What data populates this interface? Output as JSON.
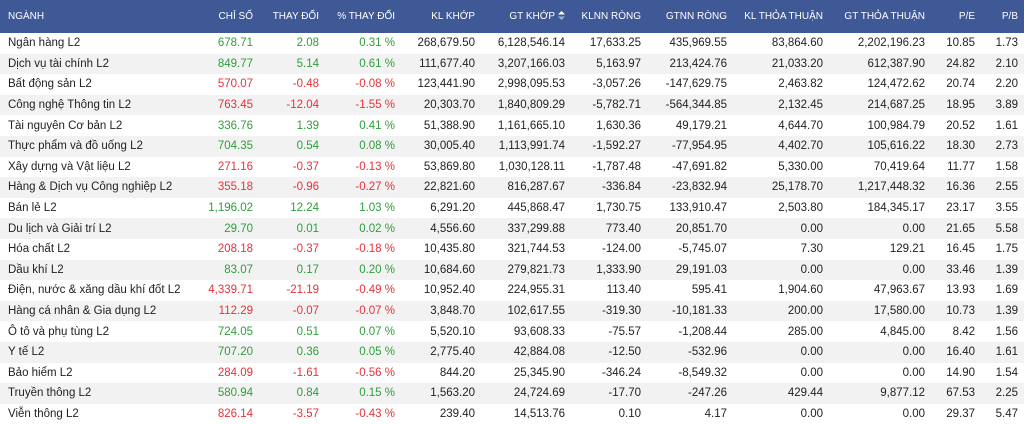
{
  "headers": [
    "NGÀNH",
    "CHỈ SỐ",
    "THAY ĐỔI",
    "% THAY ĐỔI",
    "KL KHỚP",
    "GT KHỚP",
    "KLNN RÒNG",
    "GTNN RÒNG",
    "KL THỎA THUẬN",
    "GT THỎA THUẬN",
    "P/E",
    "P/B"
  ],
  "sort_icon": "sort-up-down-icon",
  "colors": {
    "header_bg": "#3f5896",
    "up": "#2e9e3a",
    "down": "#e5333a"
  },
  "rows": [
    {
      "name": "Ngân hàng L2",
      "index": "678.71",
      "change": "2.08",
      "pct": "0.31 %",
      "kl_khop": "268,679.50",
      "gt_khop": "6,128,546.14",
      "klnn": "17,633.25",
      "gtnn": "435,969.55",
      "kl_tt": "83,864.60",
      "gt_tt": "2,202,196.23",
      "pe": "10.85",
      "pb": "1.73",
      "dir": "up"
    },
    {
      "name": "Dịch vụ tài chính L2",
      "index": "849.77",
      "change": "5.14",
      "pct": "0.61 %",
      "kl_khop": "111,677.40",
      "gt_khop": "3,207,166.03",
      "klnn": "5,163.97",
      "gtnn": "213,424.76",
      "kl_tt": "21,033.20",
      "gt_tt": "612,387.90",
      "pe": "24.82",
      "pb": "2.10",
      "dir": "up"
    },
    {
      "name": "Bất động sản L2",
      "index": "570.07",
      "change": "-0.48",
      "pct": "-0.08 %",
      "kl_khop": "123,441.90",
      "gt_khop": "2,998,095.53",
      "klnn": "-3,057.26",
      "gtnn": "-147,629.75",
      "kl_tt": "2,463.82",
      "gt_tt": "124,472.62",
      "pe": "20.74",
      "pb": "2.20",
      "dir": "down"
    },
    {
      "name": "Công nghệ Thông tin L2",
      "index": "763.45",
      "change": "-12.04",
      "pct": "-1.55 %",
      "kl_khop": "20,303.70",
      "gt_khop": "1,840,809.29",
      "klnn": "-5,782.71",
      "gtnn": "-564,344.85",
      "kl_tt": "2,132.45",
      "gt_tt": "214,687.25",
      "pe": "18.95",
      "pb": "3.89",
      "dir": "down"
    },
    {
      "name": "Tài nguyên Cơ bản L2",
      "index": "336.76",
      "change": "1.39",
      "pct": "0.41 %",
      "kl_khop": "51,388.90",
      "gt_khop": "1,161,665.10",
      "klnn": "1,630.36",
      "gtnn": "49,179.21",
      "kl_tt": "4,644.70",
      "gt_tt": "100,984.79",
      "pe": "20.52",
      "pb": "1.61",
      "dir": "up"
    },
    {
      "name": "Thực phẩm và đồ uống L2",
      "index": "704.35",
      "change": "0.54",
      "pct": "0.08 %",
      "kl_khop": "30,005.40",
      "gt_khop": "1,113,991.74",
      "klnn": "-1,592.27",
      "gtnn": "-77,954.95",
      "kl_tt": "4,402.70",
      "gt_tt": "105,616.22",
      "pe": "18.30",
      "pb": "2.73",
      "dir": "up"
    },
    {
      "name": "Xây dựng và Vật liệu L2",
      "index": "271.16",
      "change": "-0.37",
      "pct": "-0.13 %",
      "kl_khop": "53,869.80",
      "gt_khop": "1,030,128.11",
      "klnn": "-1,787.48",
      "gtnn": "-47,691.82",
      "kl_tt": "5,330.00",
      "gt_tt": "70,419.64",
      "pe": "11.77",
      "pb": "1.58",
      "dir": "down"
    },
    {
      "name": "Hàng & Dịch vụ Công nghiệp L2",
      "index": "355.18",
      "change": "-0.96",
      "pct": "-0.27 %",
      "kl_khop": "22,821.60",
      "gt_khop": "816,287.67",
      "klnn": "-336.84",
      "gtnn": "-23,832.94",
      "kl_tt": "25,178.70",
      "gt_tt": "1,217,448.32",
      "pe": "16.36",
      "pb": "2.55",
      "dir": "down"
    },
    {
      "name": "Bán lẻ L2",
      "index": "1,196.02",
      "change": "12.24",
      "pct": "1.03 %",
      "kl_khop": "6,291.20",
      "gt_khop": "445,868.47",
      "klnn": "1,730.75",
      "gtnn": "133,910.47",
      "kl_tt": "2,503.80",
      "gt_tt": "184,345.17",
      "pe": "23.17",
      "pb": "3.55",
      "dir": "up"
    },
    {
      "name": "Du lịch và Giải trí L2",
      "index": "29.70",
      "change": "0.01",
      "pct": "0.02 %",
      "kl_khop": "4,556.60",
      "gt_khop": "337,299.88",
      "klnn": "773.40",
      "gtnn": "20,851.70",
      "kl_tt": "0.00",
      "gt_tt": "0.00",
      "pe": "21.65",
      "pb": "5.58",
      "dir": "up"
    },
    {
      "name": "Hóa chất L2",
      "index": "208.18",
      "change": "-0.37",
      "pct": "-0.18 %",
      "kl_khop": "10,435.80",
      "gt_khop": "321,744.53",
      "klnn": "-124.00",
      "gtnn": "-5,745.07",
      "kl_tt": "7.30",
      "gt_tt": "129.21",
      "pe": "16.45",
      "pb": "1.75",
      "dir": "down"
    },
    {
      "name": "Dầu khí L2",
      "index": "83.07",
      "change": "0.17",
      "pct": "0.20 %",
      "kl_khop": "10,684.60",
      "gt_khop": "279,821.73",
      "klnn": "1,333.90",
      "gtnn": "29,191.03",
      "kl_tt": "0.00",
      "gt_tt": "0.00",
      "pe": "33.46",
      "pb": "1.39",
      "dir": "up"
    },
    {
      "name": "Điện, nước & xăng dầu khí đốt L2",
      "index": "4,339.71",
      "change": "-21.19",
      "pct": "-0.49 %",
      "kl_khop": "10,952.40",
      "gt_khop": "224,955.31",
      "klnn": "113.40",
      "gtnn": "595.41",
      "kl_tt": "1,904.60",
      "gt_tt": "47,963.67",
      "pe": "13.93",
      "pb": "1.69",
      "dir": "down"
    },
    {
      "name": "Hàng cá nhân & Gia dụng L2",
      "index": "112.29",
      "change": "-0.07",
      "pct": "-0.07 %",
      "kl_khop": "3,848.70",
      "gt_khop": "102,617.55",
      "klnn": "-319.30",
      "gtnn": "-10,181.33",
      "kl_tt": "200.00",
      "gt_tt": "17,580.00",
      "pe": "10.73",
      "pb": "1.39",
      "dir": "down"
    },
    {
      "name": "Ô tô và phụ tùng L2",
      "index": "724.05",
      "change": "0.51",
      "pct": "0.07 %",
      "kl_khop": "5,520.10",
      "gt_khop": "93,608.33",
      "klnn": "-75.57",
      "gtnn": "-1,208.44",
      "kl_tt": "285.00",
      "gt_tt": "4,845.00",
      "pe": "8.42",
      "pb": "1.56",
      "dir": "up"
    },
    {
      "name": "Y tế L2",
      "index": "707.20",
      "change": "0.36",
      "pct": "0.05 %",
      "kl_khop": "2,775.40",
      "gt_khop": "42,884.08",
      "klnn": "-12.50",
      "gtnn": "-532.96",
      "kl_tt": "0.00",
      "gt_tt": "0.00",
      "pe": "16.40",
      "pb": "1.61",
      "dir": "up"
    },
    {
      "name": "Bảo hiểm L2",
      "index": "284.09",
      "change": "-1.61",
      "pct": "-0.56 %",
      "kl_khop": "844.20",
      "gt_khop": "25,345.90",
      "klnn": "-346.24",
      "gtnn": "-8,549.32",
      "kl_tt": "0.00",
      "gt_tt": "0.00",
      "pe": "14.90",
      "pb": "1.54",
      "dir": "down"
    },
    {
      "name": "Truyền thông L2",
      "index": "580.94",
      "change": "0.84",
      "pct": "0.15 %",
      "kl_khop": "1,563.20",
      "gt_khop": "24,724.69",
      "klnn": "-17.70",
      "gtnn": "-247.26",
      "kl_tt": "429.44",
      "gt_tt": "9,877.12",
      "pe": "67.53",
      "pb": "2.25",
      "dir": "up"
    },
    {
      "name": "Viễn thông L2",
      "index": "826.14",
      "change": "-3.57",
      "pct": "-0.43 %",
      "kl_khop": "239.40",
      "gt_khop": "14,513.76",
      "klnn": "0.10",
      "gtnn": "4.17",
      "kl_tt": "0.00",
      "gt_tt": "0.00",
      "pe": "29.37",
      "pb": "5.47",
      "dir": "down"
    }
  ]
}
